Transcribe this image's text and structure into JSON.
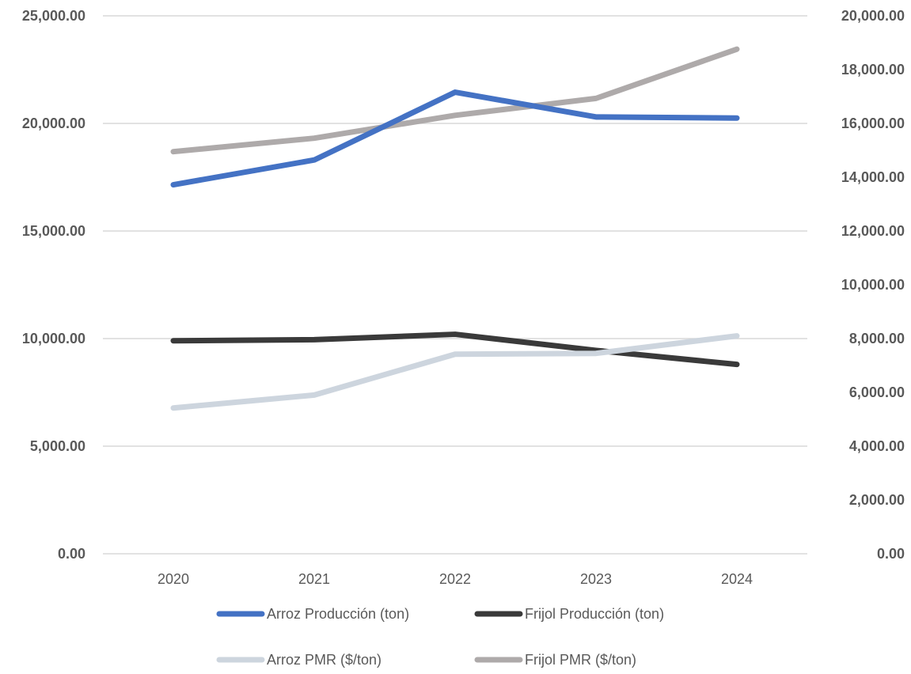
{
  "chart_data": {
    "type": "line",
    "categories": [
      "2020",
      "2021",
      "2022",
      "2023",
      "2024"
    ],
    "left_axis": {
      "range": [
        0,
        25000
      ],
      "ticks": [
        0,
        5000,
        10000,
        15000,
        20000,
        25000
      ],
      "tick_labels": [
        "0.00",
        "5,000.00",
        "10,000.00",
        "15,000.00",
        "20,000.00",
        "25,000.00"
      ]
    },
    "right_axis": {
      "range": [
        0,
        20000
      ],
      "ticks": [
        0,
        2000,
        4000,
        6000,
        8000,
        10000,
        12000,
        14000,
        16000,
        18000,
        20000
      ],
      "tick_labels": [
        "0.00",
        "2,000.00",
        "4,000.00",
        "6,000.00",
        "8,000.00",
        "10,000.00",
        "12,000.00",
        "14,000.00",
        "16,000.00",
        "18,000.00",
        "20,000.00"
      ]
    },
    "grid": true,
    "legend_position": "bottom",
    "series": [
      {
        "name": "Arroz Producción (ton)",
        "axis": "left",
        "color": "#4472c4",
        "values": [
          17150,
          18300,
          21450,
          20300,
          20250
        ]
      },
      {
        "name": "Frijol Producción (ton)",
        "axis": "left",
        "color": "#3a3a3a",
        "values": [
          9900,
          9950,
          10200,
          9450,
          8800
        ]
      },
      {
        "name": "Arroz PMR ($/ton)",
        "axis": "right",
        "color": "#cdd5de",
        "values": [
          5420,
          5900,
          7420,
          7450,
          8100
        ]
      },
      {
        "name": "Frijol PMR ($/ton)",
        "axis": "right",
        "color": "#aeaaaa",
        "values": [
          14950,
          15450,
          16300,
          16930,
          18760
        ]
      }
    ]
  }
}
